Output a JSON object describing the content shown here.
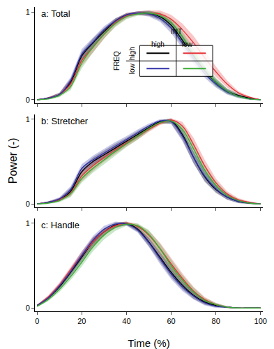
{
  "chart_data": [
    {
      "type": "line",
      "title": "a: Total",
      "x": [
        0,
        5,
        10,
        15,
        20,
        25,
        30,
        35,
        40,
        45,
        50,
        55,
        60,
        65,
        70,
        75,
        80,
        85,
        90,
        95,
        100
      ],
      "xlim": [
        -1,
        101
      ],
      "xticks": [
        0,
        20,
        40,
        60,
        80,
        100
      ],
      "ylim": [
        -0.04,
        1.06
      ],
      "yticks": [
        0,
        1
      ],
      "tick_labels": "y",
      "legend_table": {
        "column_title": "INT",
        "columns": [
          "high",
          "low"
        ],
        "row_title": "FREQ",
        "rows": [
          "high",
          "low"
        ]
      },
      "series": [
        {
          "int": "high",
          "freq": "high",
          "color": "#000000",
          "values": [
            0,
            0.02,
            0.06,
            0.2,
            0.5,
            0.65,
            0.78,
            0.9,
            0.97,
            0.99,
            0.99,
            0.95,
            0.85,
            0.68,
            0.5,
            0.33,
            0.2,
            0.1,
            0.05,
            0.02,
            0
          ],
          "error": [
            0,
            0.01,
            0.02,
            0.04,
            0.05,
            0.05,
            0.04,
            0.03,
            0.02,
            0.02,
            0.03,
            0.04,
            0.05,
            0.06,
            0.06,
            0.05,
            0.04,
            0.03,
            0.02,
            0.01,
            0
          ]
        },
        {
          "int": "low",
          "freq": "high",
          "color": "#e8353b",
          "values": [
            0,
            0.02,
            0.06,
            0.18,
            0.45,
            0.6,
            0.75,
            0.88,
            0.96,
            0.99,
            0.99,
            0.98,
            0.92,
            0.8,
            0.65,
            0.48,
            0.32,
            0.18,
            0.08,
            0.03,
            0
          ],
          "error": [
            0,
            0.01,
            0.02,
            0.05,
            0.06,
            0.06,
            0.05,
            0.04,
            0.03,
            0.02,
            0.03,
            0.04,
            0.05,
            0.07,
            0.08,
            0.07,
            0.06,
            0.04,
            0.02,
            0.01,
            0
          ]
        },
        {
          "int": "high",
          "freq": "low",
          "color": "#3232a8",
          "values": [
            0,
            0.02,
            0.06,
            0.22,
            0.52,
            0.66,
            0.8,
            0.9,
            0.97,
            0.99,
            0.98,
            0.93,
            0.82,
            0.65,
            0.47,
            0.3,
            0.18,
            0.09,
            0.04,
            0.01,
            0
          ],
          "error": [
            0,
            0.01,
            0.02,
            0.04,
            0.06,
            0.05,
            0.04,
            0.03,
            0.02,
            0.02,
            0.03,
            0.04,
            0.06,
            0.06,
            0.06,
            0.05,
            0.04,
            0.03,
            0.02,
            0.01,
            0
          ]
        },
        {
          "int": "low",
          "freq": "low",
          "color": "#3aaa35",
          "values": [
            0,
            0.01,
            0.05,
            0.15,
            0.42,
            0.6,
            0.75,
            0.87,
            0.95,
            0.98,
            0.99,
            0.96,
            0.88,
            0.72,
            0.52,
            0.35,
            0.2,
            0.1,
            0.04,
            0.01,
            0
          ],
          "error": [
            0,
            0.01,
            0.02,
            0.04,
            0.06,
            0.06,
            0.05,
            0.04,
            0.03,
            0.02,
            0.02,
            0.04,
            0.05,
            0.06,
            0.07,
            0.06,
            0.05,
            0.03,
            0.02,
            0.01,
            0
          ]
        }
      ]
    },
    {
      "type": "line",
      "title": "b: Stretcher",
      "ylabel": "Power (-)",
      "x": [
        0,
        5,
        10,
        15,
        20,
        25,
        30,
        35,
        40,
        45,
        50,
        55,
        60,
        65,
        70,
        75,
        80,
        85,
        90,
        95,
        100
      ],
      "xlim": [
        -1,
        101
      ],
      "xticks": [
        0,
        20,
        40,
        60,
        80,
        100
      ],
      "ylim": [
        -0.04,
        1.06
      ],
      "yticks": [
        0,
        1
      ],
      "tick_labels": "y",
      "series": [
        {
          "int": "high",
          "freq": "high",
          "color": "#000000",
          "values": [
            0,
            0.02,
            0.05,
            0.15,
            0.38,
            0.5,
            0.58,
            0.66,
            0.74,
            0.82,
            0.9,
            0.97,
            0.98,
            0.82,
            0.55,
            0.32,
            0.17,
            0.08,
            0.03,
            0.01,
            0
          ],
          "error": [
            0,
            0.01,
            0.02,
            0.04,
            0.05,
            0.05,
            0.05,
            0.05,
            0.04,
            0.04,
            0.03,
            0.02,
            0.03,
            0.06,
            0.07,
            0.06,
            0.04,
            0.03,
            0.02,
            0.01,
            0
          ]
        },
        {
          "int": "low",
          "freq": "high",
          "color": "#e8353b",
          "values": [
            0,
            0.02,
            0.05,
            0.13,
            0.33,
            0.45,
            0.55,
            0.64,
            0.72,
            0.8,
            0.88,
            0.95,
            0.99,
            0.92,
            0.7,
            0.45,
            0.25,
            0.12,
            0.05,
            0.02,
            0
          ],
          "error": [
            0,
            0.01,
            0.02,
            0.04,
            0.06,
            0.06,
            0.05,
            0.05,
            0.04,
            0.04,
            0.03,
            0.02,
            0.02,
            0.05,
            0.08,
            0.07,
            0.05,
            0.03,
            0.02,
            0.01,
            0
          ]
        },
        {
          "int": "high",
          "freq": "low",
          "color": "#3232a8",
          "values": [
            0,
            0.02,
            0.06,
            0.17,
            0.42,
            0.52,
            0.6,
            0.68,
            0.76,
            0.84,
            0.92,
            0.98,
            0.97,
            0.8,
            0.55,
            0.33,
            0.18,
            0.08,
            0.03,
            0.01,
            0
          ],
          "error": [
            0,
            0.01,
            0.02,
            0.04,
            0.05,
            0.05,
            0.05,
            0.05,
            0.04,
            0.04,
            0.03,
            0.02,
            0.03,
            0.06,
            0.07,
            0.06,
            0.04,
            0.03,
            0.02,
            0.01,
            0
          ]
        },
        {
          "int": "low",
          "freq": "low",
          "color": "#3aaa35",
          "values": [
            0,
            0.01,
            0.04,
            0.12,
            0.3,
            0.42,
            0.52,
            0.62,
            0.71,
            0.8,
            0.89,
            0.96,
            0.98,
            0.88,
            0.65,
            0.4,
            0.22,
            0.1,
            0.04,
            0.01,
            0
          ],
          "error": [
            0,
            0.01,
            0.02,
            0.04,
            0.05,
            0.05,
            0.05,
            0.05,
            0.04,
            0.04,
            0.03,
            0.02,
            0.02,
            0.05,
            0.07,
            0.06,
            0.05,
            0.03,
            0.02,
            0.01,
            0
          ]
        }
      ]
    },
    {
      "type": "line",
      "title": "c: Handle",
      "xlabel": "Time (%)",
      "x": [
        0,
        5,
        10,
        15,
        20,
        25,
        30,
        35,
        40,
        45,
        50,
        55,
        60,
        65,
        70,
        75,
        80,
        85,
        90,
        95,
        100
      ],
      "xlim": [
        -1,
        101
      ],
      "xticks": [
        0,
        20,
        40,
        60,
        80,
        100
      ],
      "ylim": [
        -0.04,
        1.06
      ],
      "yticks": [
        0,
        1
      ],
      "series": [
        {
          "int": "high",
          "freq": "high",
          "color": "#000000",
          "values": [
            0.03,
            0.12,
            0.25,
            0.42,
            0.6,
            0.78,
            0.9,
            0.98,
            1,
            0.93,
            0.78,
            0.6,
            0.42,
            0.27,
            0.15,
            0.07,
            0.03,
            0.01,
            0,
            0,
            0
          ],
          "error": [
            0.01,
            0.02,
            0.03,
            0.04,
            0.05,
            0.05,
            0.04,
            0.03,
            0.02,
            0.03,
            0.05,
            0.06,
            0.06,
            0.05,
            0.04,
            0.03,
            0.02,
            0.01,
            0,
            0,
            0
          ]
        },
        {
          "int": "low",
          "freq": "high",
          "color": "#e8353b",
          "values": [
            0.03,
            0.13,
            0.27,
            0.45,
            0.62,
            0.78,
            0.9,
            0.97,
            1,
            0.96,
            0.86,
            0.7,
            0.52,
            0.35,
            0.2,
            0.1,
            0.04,
            0.01,
            0,
            0,
            0
          ],
          "error": [
            0.01,
            0.02,
            0.03,
            0.04,
            0.05,
            0.05,
            0.04,
            0.03,
            0.02,
            0.03,
            0.05,
            0.07,
            0.07,
            0.06,
            0.05,
            0.03,
            0.02,
            0.01,
            0,
            0,
            0
          ]
        },
        {
          "int": "high",
          "freq": "low",
          "color": "#3232a8",
          "values": [
            0.03,
            0.12,
            0.26,
            0.43,
            0.62,
            0.8,
            0.93,
            0.99,
            0.99,
            0.92,
            0.77,
            0.58,
            0.4,
            0.25,
            0.14,
            0.06,
            0.02,
            0.01,
            0,
            0,
            0
          ],
          "error": [
            0.01,
            0.02,
            0.03,
            0.04,
            0.05,
            0.05,
            0.04,
            0.03,
            0.02,
            0.03,
            0.05,
            0.06,
            0.06,
            0.05,
            0.04,
            0.03,
            0.02,
            0.01,
            0,
            0,
            0
          ]
        },
        {
          "int": "low",
          "freq": "low",
          "color": "#3aaa35",
          "values": [
            0.02,
            0.1,
            0.22,
            0.37,
            0.54,
            0.72,
            0.86,
            0.95,
            0.99,
            0.97,
            0.87,
            0.7,
            0.5,
            0.33,
            0.19,
            0.09,
            0.04,
            0.01,
            0,
            0,
            0
          ],
          "error": [
            0.01,
            0.02,
            0.03,
            0.04,
            0.05,
            0.05,
            0.05,
            0.04,
            0.02,
            0.03,
            0.05,
            0.06,
            0.07,
            0.06,
            0.05,
            0.03,
            0.02,
            0.01,
            0,
            0,
            0
          ]
        }
      ]
    }
  ]
}
